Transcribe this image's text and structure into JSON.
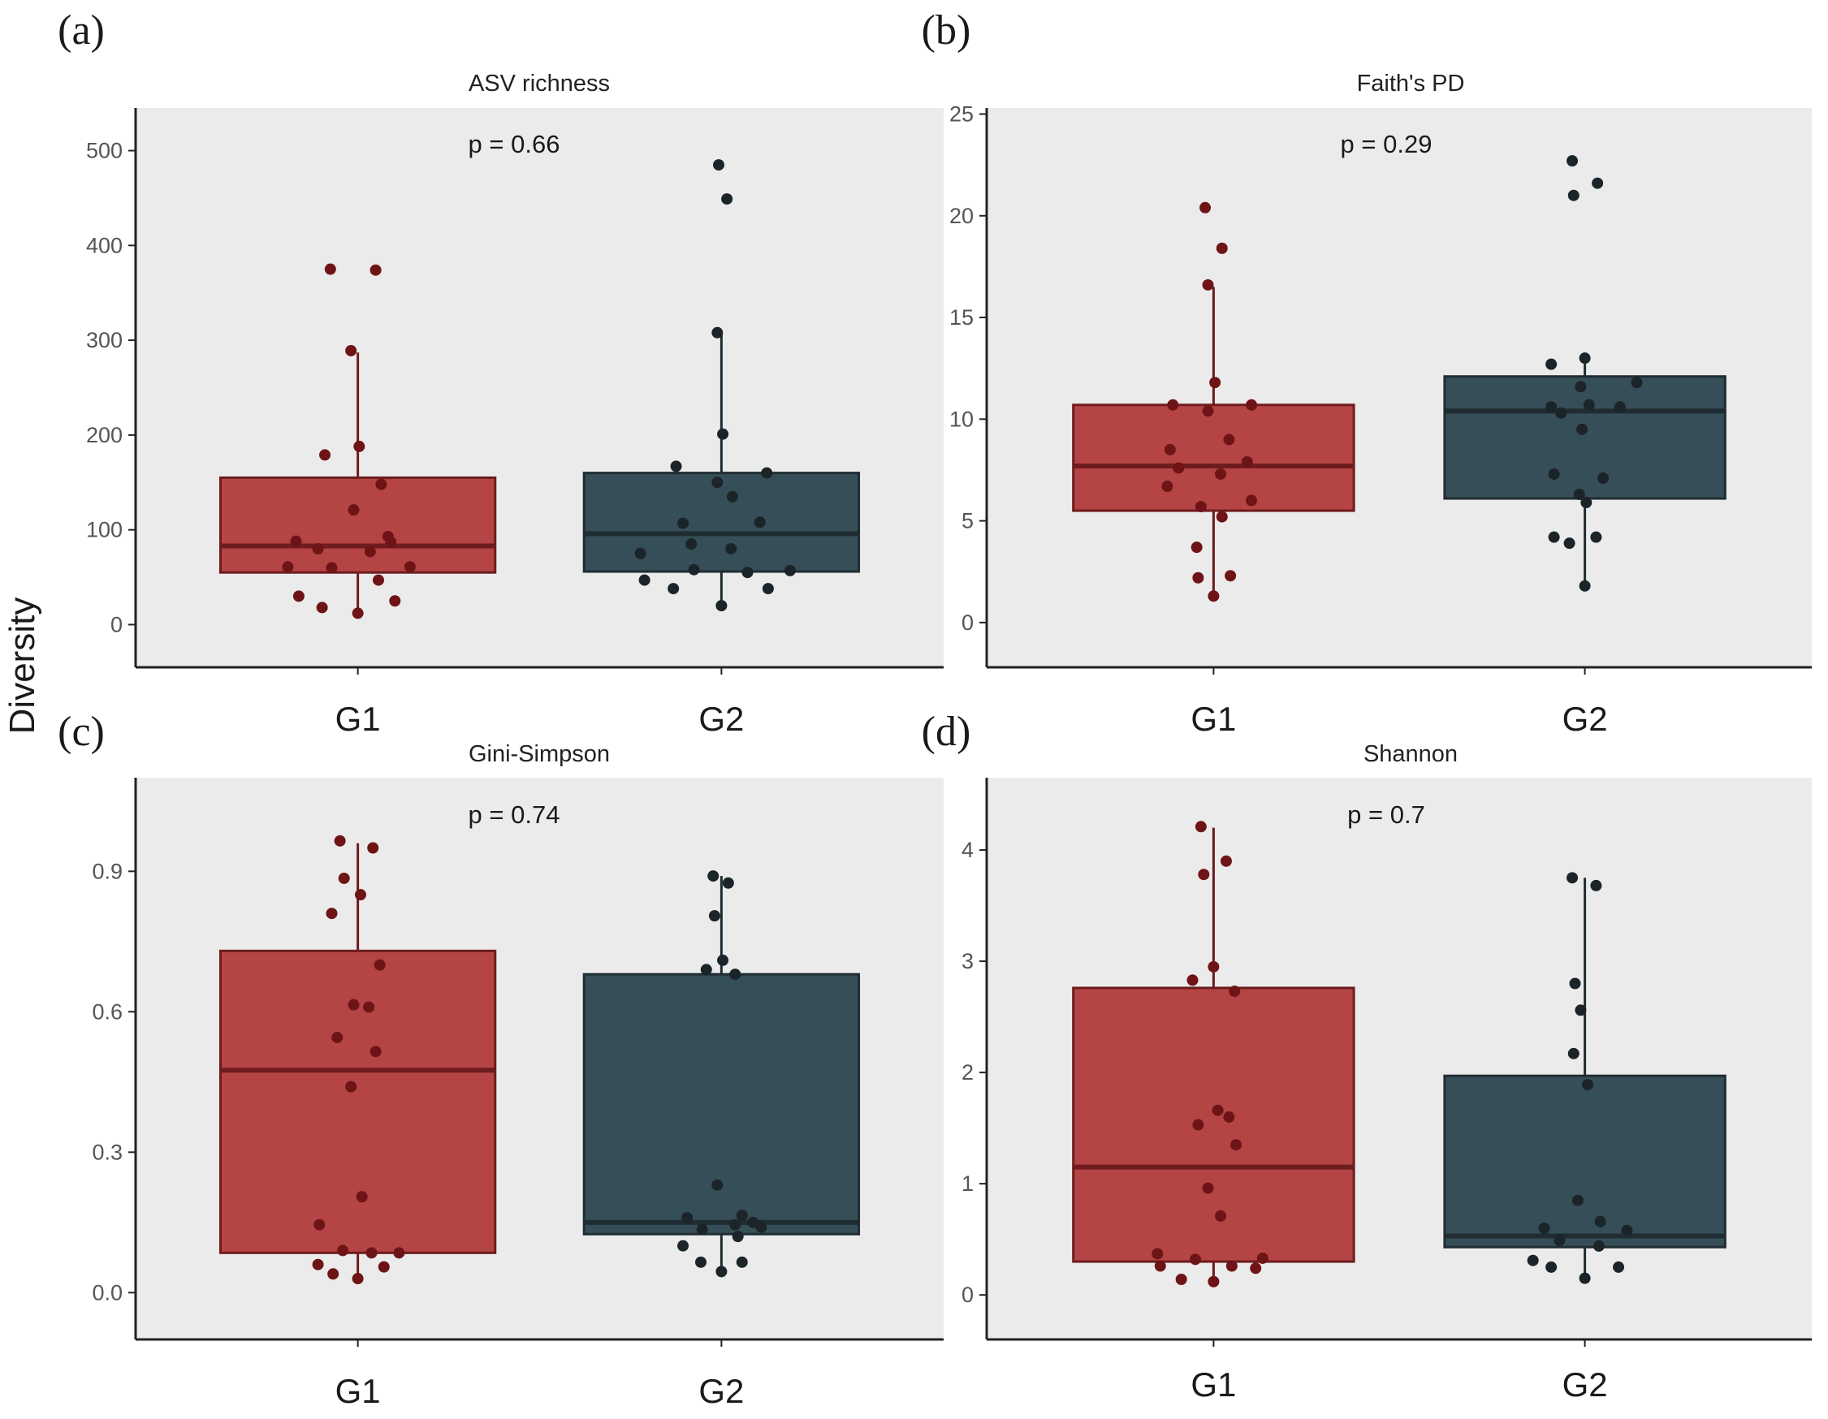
{
  "figure": {
    "ylabel": "Diversity",
    "colors": {
      "G1_fill": "#b54445",
      "G1_line": "#6e1c1e",
      "G1_point": "#6e1416",
      "G2_fill": "#364e57",
      "G2_line": "#1f2d33",
      "G2_point": "#1b2428",
      "panel_bg": "#ebebeb",
      "axis": "#222222"
    }
  },
  "chart_data": [
    {
      "type": "box",
      "letter": "(a)",
      "title": "ASV richness",
      "pvalue": "p = 0.66",
      "categories": [
        "G1",
        "G2"
      ],
      "ylim": [
        -45,
        545
      ],
      "yticks": [
        0,
        100,
        200,
        300,
        400,
        500
      ],
      "ytick_labels": [
        "0",
        "100",
        "200",
        "300",
        "400",
        "500"
      ],
      "boxes": [
        {
          "group": "G1",
          "whisker_low": 12,
          "q1": 55,
          "median": 83,
          "q3": 155,
          "whisker_high": 287
        },
        {
          "group": "G2",
          "whisker_low": 20,
          "q1": 56,
          "median": 96,
          "q3": 160,
          "whisker_high": 307
        }
      ],
      "points": [
        {
          "group": "G1",
          "jitter": -0.2,
          "y": 375
        },
        {
          "group": "G1",
          "jitter": 0.13,
          "y": 374
        },
        {
          "group": "G1",
          "jitter": -0.05,
          "y": 289
        },
        {
          "group": "G1",
          "jitter": -0.24,
          "y": 179
        },
        {
          "group": "G1",
          "jitter": 0.01,
          "y": 188
        },
        {
          "group": "G1",
          "jitter": 0.17,
          "y": 148
        },
        {
          "group": "G1",
          "jitter": -0.03,
          "y": 121
        },
        {
          "group": "G1",
          "jitter": 0.24,
          "y": 87
        },
        {
          "group": "G1",
          "jitter": 0.22,
          "y": 93
        },
        {
          "group": "G1",
          "jitter": -0.45,
          "y": 88
        },
        {
          "group": "G1",
          "jitter": -0.29,
          "y": 80
        },
        {
          "group": "G1",
          "jitter": 0.09,
          "y": 77
        },
        {
          "group": "G1",
          "jitter": -0.51,
          "y": 61
        },
        {
          "group": "G1",
          "jitter": -0.19,
          "y": 60
        },
        {
          "group": "G1",
          "jitter": 0.38,
          "y": 61
        },
        {
          "group": "G1",
          "jitter": 0.15,
          "y": 47
        },
        {
          "group": "G1",
          "jitter": -0.43,
          "y": 30
        },
        {
          "group": "G1",
          "jitter": -0.26,
          "y": 18
        },
        {
          "group": "G1",
          "jitter": 0.0,
          "y": 12
        },
        {
          "group": "G1",
          "jitter": 0.27,
          "y": 25
        },
        {
          "group": "G2",
          "jitter": -0.02,
          "y": 485
        },
        {
          "group": "G2",
          "jitter": 0.04,
          "y": 449
        },
        {
          "group": "G2",
          "jitter": -0.03,
          "y": 308
        },
        {
          "group": "G2",
          "jitter": 0.01,
          "y": 201
        },
        {
          "group": "G2",
          "jitter": -0.33,
          "y": 167
        },
        {
          "group": "G2",
          "jitter": 0.33,
          "y": 160
        },
        {
          "group": "G2",
          "jitter": -0.03,
          "y": 150
        },
        {
          "group": "G2",
          "jitter": 0.08,
          "y": 135
        },
        {
          "group": "G2",
          "jitter": 0.28,
          "y": 108
        },
        {
          "group": "G2",
          "jitter": -0.28,
          "y": 107
        },
        {
          "group": "G2",
          "jitter": -0.22,
          "y": 85
        },
        {
          "group": "G2",
          "jitter": 0.07,
          "y": 80
        },
        {
          "group": "G2",
          "jitter": -0.59,
          "y": 75
        },
        {
          "group": "G2",
          "jitter": -0.2,
          "y": 58
        },
        {
          "group": "G2",
          "jitter": 0.19,
          "y": 55
        },
        {
          "group": "G2",
          "jitter": 0.5,
          "y": 57
        },
        {
          "group": "G2",
          "jitter": -0.56,
          "y": 47
        },
        {
          "group": "G2",
          "jitter": -0.35,
          "y": 38
        },
        {
          "group": "G2",
          "jitter": 0.34,
          "y": 38
        },
        {
          "group": "G2",
          "jitter": 0.0,
          "y": 20
        }
      ]
    },
    {
      "type": "box",
      "letter": "(b)",
      "title": "Faith's PD",
      "pvalue": "p = 0.29",
      "categories": [
        "G1",
        "G2"
      ],
      "ylim": [
        -2.2,
        25.3
      ],
      "yticks": [
        0,
        5,
        10,
        15,
        20,
        25
      ],
      "ytick_labels": [
        "0",
        "5",
        "10",
        "15",
        "20",
        "25"
      ],
      "boxes": [
        {
          "group": "G1",
          "whisker_low": 1.3,
          "q1": 5.5,
          "median": 7.7,
          "q3": 10.7,
          "whisker_high": 16.5
        },
        {
          "group": "G2",
          "whisker_low": 1.8,
          "q1": 6.1,
          "median": 10.4,
          "q3": 12.1,
          "whisker_high": 13.0
        }
      ],
      "points": [
        {
          "group": "G1",
          "jitter": -0.06,
          "y": 20.4
        },
        {
          "group": "G1",
          "jitter": 0.06,
          "y": 18.4
        },
        {
          "group": "G1",
          "jitter": -0.04,
          "y": 16.6
        },
        {
          "group": "G1",
          "jitter": 0.01,
          "y": 11.8
        },
        {
          "group": "G1",
          "jitter": -0.29,
          "y": 10.7
        },
        {
          "group": "G1",
          "jitter": 0.27,
          "y": 10.7
        },
        {
          "group": "G1",
          "jitter": -0.04,
          "y": 10.4
        },
        {
          "group": "G1",
          "jitter": 0.11,
          "y": 9.0
        },
        {
          "group": "G1",
          "jitter": -0.31,
          "y": 8.5
        },
        {
          "group": "G1",
          "jitter": 0.24,
          "y": 7.9
        },
        {
          "group": "G1",
          "jitter": -0.25,
          "y": 7.6
        },
        {
          "group": "G1",
          "jitter": 0.05,
          "y": 7.3
        },
        {
          "group": "G1",
          "jitter": -0.33,
          "y": 6.7
        },
        {
          "group": "G1",
          "jitter": 0.27,
          "y": 6.0
        },
        {
          "group": "G1",
          "jitter": -0.09,
          "y": 5.7
        },
        {
          "group": "G1",
          "jitter": 0.06,
          "y": 5.2
        },
        {
          "group": "G1",
          "jitter": -0.12,
          "y": 3.7
        },
        {
          "group": "G1",
          "jitter": -0.11,
          "y": 2.2
        },
        {
          "group": "G1",
          "jitter": 0.12,
          "y": 2.3
        },
        {
          "group": "G1",
          "jitter": 0.0,
          "y": 1.3
        },
        {
          "group": "G2",
          "jitter": -0.09,
          "y": 22.7
        },
        {
          "group": "G2",
          "jitter": -0.08,
          "y": 21.0
        },
        {
          "group": "G2",
          "jitter": 0.09,
          "y": 21.6
        },
        {
          "group": "G2",
          "jitter": 0.0,
          "y": 13.0
        },
        {
          "group": "G2",
          "jitter": -0.24,
          "y": 12.7
        },
        {
          "group": "G2",
          "jitter": 0.37,
          "y": 11.8
        },
        {
          "group": "G2",
          "jitter": -0.03,
          "y": 11.6
        },
        {
          "group": "G2",
          "jitter": 0.03,
          "y": 10.7
        },
        {
          "group": "G2",
          "jitter": -0.24,
          "y": 10.6
        },
        {
          "group": "G2",
          "jitter": 0.25,
          "y": 10.6
        },
        {
          "group": "G2",
          "jitter": -0.17,
          "y": 10.3
        },
        {
          "group": "G2",
          "jitter": -0.02,
          "y": 9.5
        },
        {
          "group": "G2",
          "jitter": -0.22,
          "y": 7.3
        },
        {
          "group": "G2",
          "jitter": 0.13,
          "y": 7.1
        },
        {
          "group": "G2",
          "jitter": -0.04,
          "y": 6.3
        },
        {
          "group": "G2",
          "jitter": 0.01,
          "y": 5.9
        },
        {
          "group": "G2",
          "jitter": -0.22,
          "y": 4.2
        },
        {
          "group": "G2",
          "jitter": -0.11,
          "y": 3.9
        },
        {
          "group": "G2",
          "jitter": 0.08,
          "y": 4.2
        },
        {
          "group": "G2",
          "jitter": 0.0,
          "y": 1.8
        }
      ]
    },
    {
      "type": "box",
      "letter": "(c)",
      "title": "Gini-Simpson",
      "pvalue": "p = 0.74",
      "categories": [
        "G1",
        "G2"
      ],
      "ylim": [
        -0.1,
        1.1
      ],
      "yticks": [
        0.0,
        0.3,
        0.6,
        0.9
      ],
      "ytick_labels": [
        "0.0",
        "0.3",
        "0.6",
        "0.9"
      ],
      "boxes": [
        {
          "group": "G1",
          "whisker_low": 0.03,
          "q1": 0.085,
          "median": 0.475,
          "q3": 0.73,
          "whisker_high": 0.96
        },
        {
          "group": "G2",
          "whisker_low": 0.045,
          "q1": 0.125,
          "median": 0.15,
          "q3": 0.68,
          "whisker_high": 0.89
        }
      ],
      "points": [
        {
          "group": "G1",
          "jitter": -0.13,
          "y": 0.965
        },
        {
          "group": "G1",
          "jitter": 0.11,
          "y": 0.95
        },
        {
          "group": "G1",
          "jitter": -0.1,
          "y": 0.885
        },
        {
          "group": "G1",
          "jitter": 0.02,
          "y": 0.85
        },
        {
          "group": "G1",
          "jitter": -0.19,
          "y": 0.81
        },
        {
          "group": "G1",
          "jitter": 0.16,
          "y": 0.7
        },
        {
          "group": "G1",
          "jitter": -0.03,
          "y": 0.615
        },
        {
          "group": "G1",
          "jitter": 0.08,
          "y": 0.61
        },
        {
          "group": "G1",
          "jitter": -0.15,
          "y": 0.545
        },
        {
          "group": "G1",
          "jitter": 0.13,
          "y": 0.515
        },
        {
          "group": "G1",
          "jitter": -0.05,
          "y": 0.44
        },
        {
          "group": "G1",
          "jitter": 0.03,
          "y": 0.205
        },
        {
          "group": "G1",
          "jitter": -0.28,
          "y": 0.145
        },
        {
          "group": "G1",
          "jitter": -0.11,
          "y": 0.09
        },
        {
          "group": "G1",
          "jitter": 0.1,
          "y": 0.085
        },
        {
          "group": "G1",
          "jitter": 0.3,
          "y": 0.085
        },
        {
          "group": "G1",
          "jitter": -0.29,
          "y": 0.06
        },
        {
          "group": "G1",
          "jitter": 0.19,
          "y": 0.055
        },
        {
          "group": "G1",
          "jitter": -0.18,
          "y": 0.04
        },
        {
          "group": "G1",
          "jitter": 0.0,
          "y": 0.03
        },
        {
          "group": "G2",
          "jitter": -0.06,
          "y": 0.89
        },
        {
          "group": "G2",
          "jitter": 0.05,
          "y": 0.875
        },
        {
          "group": "G2",
          "jitter": -0.05,
          "y": 0.805
        },
        {
          "group": "G2",
          "jitter": 0.01,
          "y": 0.71
        },
        {
          "group": "G2",
          "jitter": -0.11,
          "y": 0.69
        },
        {
          "group": "G2",
          "jitter": 0.1,
          "y": 0.68
        },
        {
          "group": "G2",
          "jitter": -0.03,
          "y": 0.23
        },
        {
          "group": "G2",
          "jitter": 0.15,
          "y": 0.165
        },
        {
          "group": "G2",
          "jitter": -0.25,
          "y": 0.16
        },
        {
          "group": "G2",
          "jitter": -0.14,
          "y": 0.135
        },
        {
          "group": "G2",
          "jitter": 0.1,
          "y": 0.145
        },
        {
          "group": "G2",
          "jitter": 0.29,
          "y": 0.14
        },
        {
          "group": "G2",
          "jitter": 0.12,
          "y": 0.12
        },
        {
          "group": "G2",
          "jitter": -0.28,
          "y": 0.1
        },
        {
          "group": "G2",
          "jitter": 0.23,
          "y": 0.15
        },
        {
          "group": "G2",
          "jitter": -0.15,
          "y": 0.065
        },
        {
          "group": "G2",
          "jitter": 0.15,
          "y": 0.065
        },
        {
          "group": "G2",
          "jitter": 0.0,
          "y": 0.045
        }
      ]
    },
    {
      "type": "box",
      "letter": "(d)",
      "title": "Shannon",
      "pvalue": "p = 0.7",
      "categories": [
        "G1",
        "G2"
      ],
      "ylim": [
        -0.4,
        4.65
      ],
      "yticks": [
        0,
        1,
        2,
        3,
        4
      ],
      "ytick_labels": [
        "0",
        "1",
        "2",
        "3",
        "4"
      ],
      "boxes": [
        {
          "group": "G1",
          "whisker_low": 0.12,
          "q1": 0.3,
          "median": 1.15,
          "q3": 2.76,
          "whisker_high": 4.2
        },
        {
          "group": "G2",
          "whisker_low": 0.15,
          "q1": 0.43,
          "median": 0.53,
          "q3": 1.97,
          "whisker_high": 3.75
        }
      ],
      "points": [
        {
          "group": "G1",
          "jitter": -0.09,
          "y": 4.21
        },
        {
          "group": "G1",
          "jitter": 0.09,
          "y": 3.9
        },
        {
          "group": "G1",
          "jitter": -0.07,
          "y": 3.78
        },
        {
          "group": "G1",
          "jitter": 0.0,
          "y": 2.95
        },
        {
          "group": "G1",
          "jitter": -0.15,
          "y": 2.83
        },
        {
          "group": "G1",
          "jitter": 0.15,
          "y": 2.73
        },
        {
          "group": "G1",
          "jitter": -0.11,
          "y": 1.53
        },
        {
          "group": "G1",
          "jitter": 0.03,
          "y": 1.66
        },
        {
          "group": "G1",
          "jitter": 0.11,
          "y": 1.6
        },
        {
          "group": "G1",
          "jitter": 0.16,
          "y": 1.35
        },
        {
          "group": "G1",
          "jitter": -0.04,
          "y": 0.96
        },
        {
          "group": "G1",
          "jitter": 0.05,
          "y": 0.71
        },
        {
          "group": "G1",
          "jitter": -0.4,
          "y": 0.37
        },
        {
          "group": "G1",
          "jitter": -0.38,
          "y": 0.26
        },
        {
          "group": "G1",
          "jitter": -0.13,
          "y": 0.32
        },
        {
          "group": "G1",
          "jitter": 0.13,
          "y": 0.26
        },
        {
          "group": "G1",
          "jitter": 0.3,
          "y": 0.24
        },
        {
          "group": "G1",
          "jitter": 0.35,
          "y": 0.33
        },
        {
          "group": "G1",
          "jitter": -0.23,
          "y": 0.14
        },
        {
          "group": "G1",
          "jitter": 0.0,
          "y": 0.12
        },
        {
          "group": "G2",
          "jitter": -0.09,
          "y": 3.75
        },
        {
          "group": "G2",
          "jitter": 0.08,
          "y": 3.68
        },
        {
          "group": "G2",
          "jitter": -0.07,
          "y": 2.8
        },
        {
          "group": "G2",
          "jitter": -0.03,
          "y": 2.56
        },
        {
          "group": "G2",
          "jitter": -0.08,
          "y": 2.17
        },
        {
          "group": "G2",
          "jitter": 0.02,
          "y": 1.89
        },
        {
          "group": "G2",
          "jitter": -0.05,
          "y": 0.85
        },
        {
          "group": "G2",
          "jitter": 0.11,
          "y": 0.66
        },
        {
          "group": "G2",
          "jitter": -0.29,
          "y": 0.6
        },
        {
          "group": "G2",
          "jitter": 0.3,
          "y": 0.58
        },
        {
          "group": "G2",
          "jitter": -0.18,
          "y": 0.49
        },
        {
          "group": "G2",
          "jitter": 0.1,
          "y": 0.44
        },
        {
          "group": "G2",
          "jitter": -0.37,
          "y": 0.31
        },
        {
          "group": "G2",
          "jitter": -0.24,
          "y": 0.25
        },
        {
          "group": "G2",
          "jitter": 0.24,
          "y": 0.25
        },
        {
          "group": "G2",
          "jitter": 0.0,
          "y": 0.15
        }
      ]
    }
  ]
}
